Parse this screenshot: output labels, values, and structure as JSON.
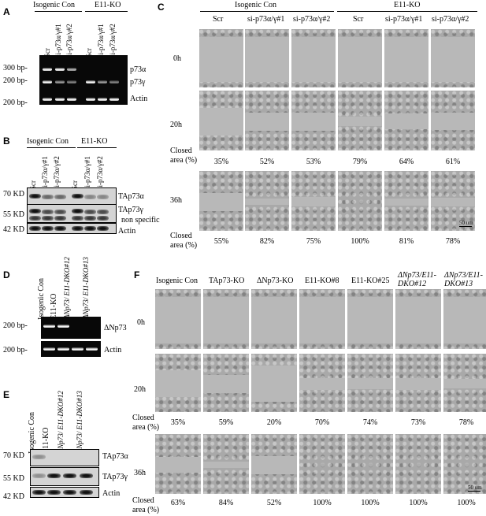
{
  "panels": {
    "A": {
      "label": "A",
      "groups": [
        "Isogenic Con",
        "E11-KO"
      ],
      "lanes": [
        "Scr",
        "si-p73α/γ#1",
        "si-p73α/γ#2",
        "Scr",
        "si-p73α/γ#1",
        "si-p73α/γ#2"
      ],
      "markers": [
        "300 bp-",
        "200 bp-",
        "200 bp-"
      ],
      "bands": [
        "p73α",
        "p73γ",
        "Actin"
      ]
    },
    "B": {
      "label": "B",
      "groups": [
        "Isogenic Con",
        "E11-KO"
      ],
      "lanes": [
        "Scr",
        "si-p73α/γ#1",
        "si-p73α/γ#2",
        "Scr",
        "si-p73α/γ#1",
        "si-p73α/γ#2"
      ],
      "markers": [
        "70 KD",
        "55 KD",
        "42 KD"
      ],
      "bands": [
        "TAp73α",
        "TAp73γ",
        "non specific",
        "Actin"
      ]
    },
    "C": {
      "label": "C",
      "groups": [
        "Isogenic Con",
        "E11-KO"
      ],
      "columns": [
        "Scr",
        "si-p73α/γ#1",
        "si-p73α/γ#2",
        "Scr",
        "si-p73α/γ#1",
        "si-p73α/γ#2"
      ],
      "times": [
        "0h",
        "20h",
        "36h"
      ],
      "closed_label": "Closed area (%)",
      "closed_20h": [
        "35%",
        "52%",
        "53%",
        "79%",
        "64%",
        "61%"
      ],
      "closed_36h": [
        "55%",
        "82%",
        "75%",
        "100%",
        "81%",
        "78%"
      ],
      "scale_bar": "50 um"
    },
    "D": {
      "label": "D",
      "lanes": [
        "Isogenic Con",
        "E11-KO",
        "ΔNp73/ E11-DKO#12",
        "ΔNp73/ E11-DKO#13"
      ],
      "markers": [
        "200 bp-",
        "200 bp-"
      ],
      "bands": [
        "ΔNp73",
        "Actin"
      ]
    },
    "E": {
      "label": "E",
      "lanes": [
        "Isogenic Con",
        "E11-KO",
        "ΔNp73/ E11-DKO#12",
        "ΔNp73/ E11-DKO#13"
      ],
      "markers": [
        "70 KD",
        "55 KD",
        "42 KD"
      ],
      "bands": [
        "TAp73α",
        "TAp73γ",
        "Actin"
      ]
    },
    "F": {
      "label": "F",
      "columns": [
        "Isogenic Con",
        "TAp73-KO",
        "ΔNp73-KO",
        "E11-KO#8",
        "E11-KO#25",
        "ΔNp73/E11-DKO#12",
        "ΔNp73/E11-DKO#13"
      ],
      "times": [
        "0h",
        "20h",
        "36h"
      ],
      "closed_label": "Closed area (%)",
      "closed_20h": [
        "35%",
        "59%",
        "20%",
        "70%",
        "74%",
        "73%",
        "78%"
      ],
      "closed_36h": [
        "63%",
        "84%",
        "52%",
        "100%",
        "100%",
        "100%",
        "100%"
      ],
      "scale_bar": "50 um"
    }
  }
}
